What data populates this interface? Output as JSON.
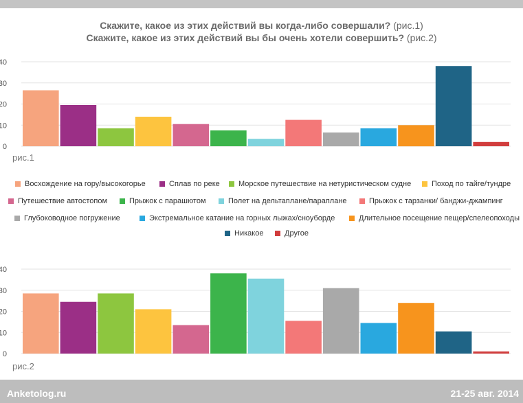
{
  "header": {
    "question1": "Скажите, какое из этих действий вы когда-либо совершали?",
    "question1_ref": "(рис.1)",
    "question2": "Скажите, какое из этих действий вы бы очень хотели совершить?",
    "question2_ref": "(рис.2)"
  },
  "footer": {
    "brand": "Anketolog.ru",
    "date": "21-25 авг. 2014"
  },
  "colors": {
    "top_bar": "#c4c4c4",
    "bottom_bar": "#bdbdbd"
  },
  "legend": [
    {
      "name": "Восхождение на гору/высокогорье",
      "color": "#f6a47e"
    },
    {
      "name": "Сплав по реке",
      "color": "#9b2f86"
    },
    {
      "name": "Морское путешествие на нетуристическом судне",
      "color": "#8dc63f"
    },
    {
      "name": "Поход по тайге/тундре",
      "color": "#fdc43f"
    },
    {
      "name": "Путешествие автостопом",
      "color": "#d4678f"
    },
    {
      "name": "Прыжок с парашютом",
      "color": "#3cb44b"
    },
    {
      "name": "Полет на дельтаплане/параплане",
      "color": "#7fd3dd"
    },
    {
      "name": "Прыжок с тарзанки/ банджи-джампинг",
      "color": "#f37878"
    },
    {
      "name": "Глубоководное погружение",
      "color": "#a9a9a9"
    },
    {
      "name": "Экстремальное катание на горных лыжах/сноуборде",
      "color": "#29a8df"
    },
    {
      "name": "Длительное посещение пещер/спелеопоходы",
      "color": "#f7941d"
    },
    {
      "name": "Никакое",
      "color": "#1f6486"
    },
    {
      "name": "Другое",
      "color": "#d13d3d"
    }
  ],
  "chart_data": [
    {
      "type": "bar",
      "label": "рис.1",
      "categories": [
        "Восхождение на гору/высокогорье",
        "Сплав по реке",
        "Морское путешествие на нетуристическом судне",
        "Поход по тайге/тундре",
        "Путешествие автостопом",
        "Прыжок с парашютом",
        "Полет на дельтаплане/параплане",
        "Прыжок с тарзанки/ банджи-джампинг",
        "Глубоководное погружение",
        "Экстремальное катание на горных лыжах/сноуборде",
        "Длительное посещение пещер/спелеопоходы",
        "Никакое",
        "Другое"
      ],
      "values": [
        26.5,
        19.5,
        8.5,
        14,
        10.5,
        7.5,
        3.5,
        12.5,
        6.5,
        8.5,
        10,
        38,
        2
      ],
      "ylim": [
        0,
        40
      ],
      "yticks": [
        "0",
        "10",
        "20",
        "30",
        "40"
      ],
      "grid": true
    },
    {
      "type": "bar",
      "label": "рис.2",
      "categories": [
        "Восхождение на гору/высокогорье",
        "Сплав по реке",
        "Морское путешествие на нетуристическом судне",
        "Поход по тайге/тундре",
        "Путешествие автостопом",
        "Прыжок с парашютом",
        "Полет на дельтаплане/параплане",
        "Прыжок с тарзанки/ банджи-джампинг",
        "Глубоководное погружение",
        "Экстремальное катание на горных лыжах/сноуборде",
        "Длительное посещение пещер/спелеопоходы",
        "Никакое",
        "Другое"
      ],
      "values": [
        28.5,
        24.5,
        28.5,
        21,
        13.5,
        38,
        35.5,
        15.5,
        31,
        14.5,
        24,
        10.5,
        1
      ],
      "ylim": [
        0,
        40
      ],
      "yticks": [
        "0",
        "10",
        "20",
        "30",
        "40"
      ],
      "grid": true
    }
  ]
}
